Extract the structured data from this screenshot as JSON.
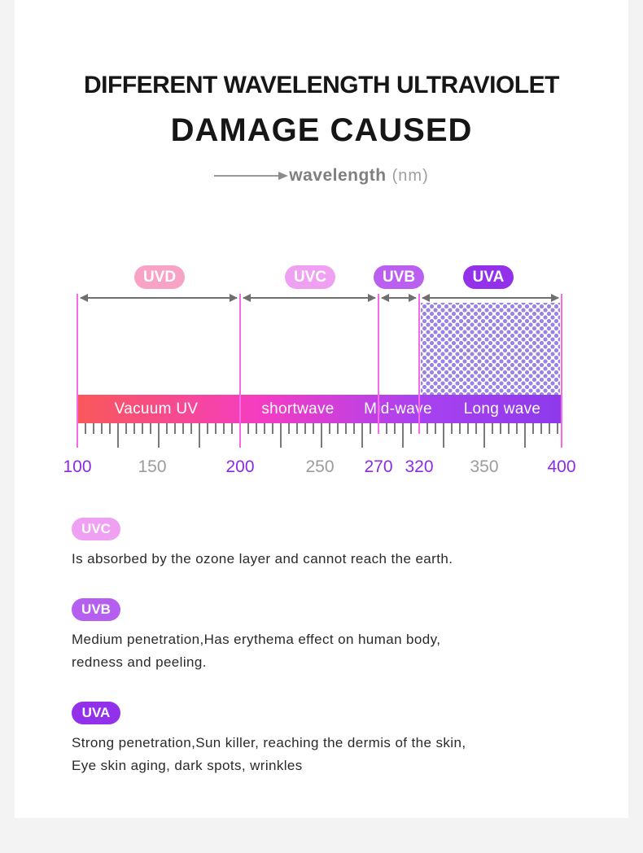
{
  "header": {
    "title_line1": "DIFFERENT WAVELENGTH ULTRAVIOLET",
    "title_line2": "DAMAGE CAUSED",
    "axis_label": "wavelength",
    "axis_unit": "(nm)"
  },
  "spectrum": {
    "bands": [
      {
        "label": "UVD",
        "range_label": "Vacuum UV",
        "from_nm": 100,
        "to_nm": 200,
        "pill_color": "#f8a2c6",
        "hatched": false
      },
      {
        "label": "UVC",
        "range_label": "shortwave",
        "from_nm": 200,
        "to_nm": 270,
        "pill_color": "#f0a0f2",
        "hatched": false
      },
      {
        "label": "UVB",
        "range_label": "Mid-wave",
        "from_nm": 270,
        "to_nm": 320,
        "pill_color": "#ba5ff0",
        "hatched": false
      },
      {
        "label": "UVA",
        "range_label": "Long wave",
        "from_nm": 320,
        "to_nm": 400,
        "pill_color": "#9230ea",
        "hatched": true
      }
    ],
    "numbers": [
      {
        "value": "100",
        "highlight": true
      },
      {
        "value": "150",
        "highlight": false
      },
      {
        "value": "200",
        "highlight": true
      },
      {
        "value": "250",
        "highlight": false
      },
      {
        "value": "270",
        "highlight": true
      },
      {
        "value": "320",
        "highlight": true
      },
      {
        "value": "350",
        "highlight": false
      },
      {
        "value": "400",
        "highlight": true
      }
    ],
    "colors": {
      "gradient": [
        "#f85959",
        "#f43cc3",
        "#aa42f0",
        "#8d3aeb"
      ],
      "boundary_line": "#f66ae9",
      "arrow": "#6f6f6f",
      "tick": "#7a7a7a",
      "number_highlight": "#8b2be2",
      "number_muted": "#9c9c9c",
      "hatch_dot": "#9b82e6"
    }
  },
  "descriptions": [
    {
      "label": "UVC",
      "pill_color": "#f0a0f2",
      "lines": [
        "Is absorbed by the ozone layer and cannot reach the earth."
      ]
    },
    {
      "label": "UVB",
      "pill_color": "#b55ff0",
      "lines": [
        "Medium penetration,Has erythema effect on human body,",
        "redness and peeling."
      ]
    },
    {
      "label": "UVA",
      "pill_color": "#9230ea",
      "lines": [
        "Strong penetration,Sun killer, reaching the dermis of the skin,",
        "Eye skin aging, dark spots, wrinkles"
      ]
    }
  ]
}
